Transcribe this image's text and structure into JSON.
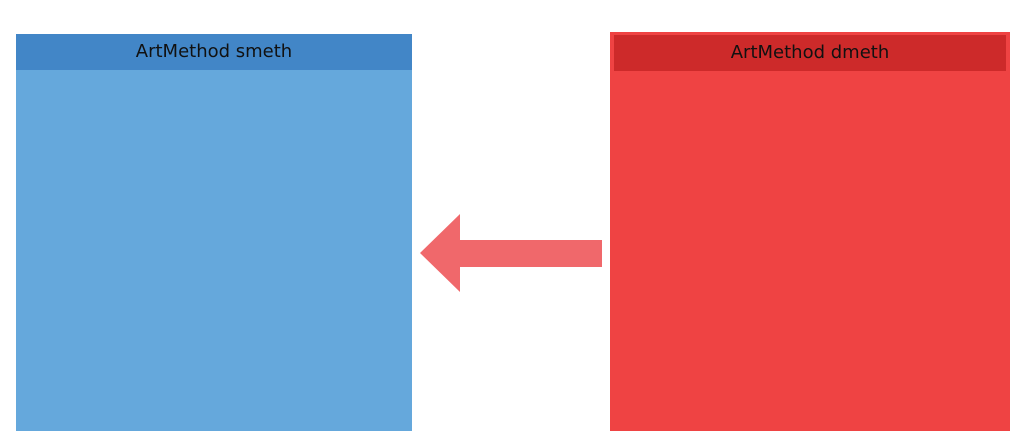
{
  "source_box": {
    "title": "ArtMethod smeth",
    "header_color": "#4286c7",
    "body_color": "#65a8dc"
  },
  "dest_box": {
    "title": "ArtMethod dmeth",
    "header_color": "#cd2a2a",
    "body_color": "#ef4343"
  },
  "arrow": {
    "direction": "left",
    "color": "#f0686b"
  }
}
